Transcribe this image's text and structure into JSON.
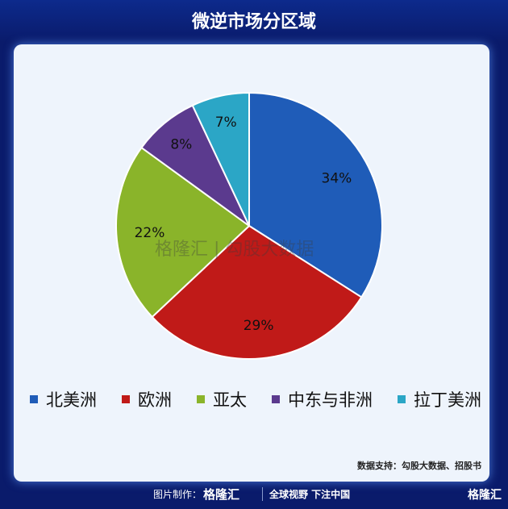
{
  "header": {
    "title": "微逆市场分区域"
  },
  "chart_data": {
    "type": "pie",
    "categories": [
      "北美洲",
      "欧洲",
      "亚太",
      "中东与非洲",
      "拉丁美洲"
    ],
    "values": [
      34,
      29,
      22,
      8,
      7
    ],
    "labels": [
      "34%",
      "29%",
      "22%",
      "8%",
      "7%"
    ],
    "colors": [
      "#1f5cb8",
      "#c01a18",
      "#8ab42a",
      "#5b3a8e",
      "#2ba6c6"
    ],
    "start": "top",
    "direction": "clockwise",
    "legend_position": "bottom"
  },
  "watermark": "格隆汇 | 勾股大数据",
  "source": "数据支持：勾股大数据、招股书",
  "footer": {
    "label": "图片制作：",
    "brand": "格隆汇",
    "slogan": "全球视野 下注中国",
    "corner_brand": "格隆汇"
  }
}
